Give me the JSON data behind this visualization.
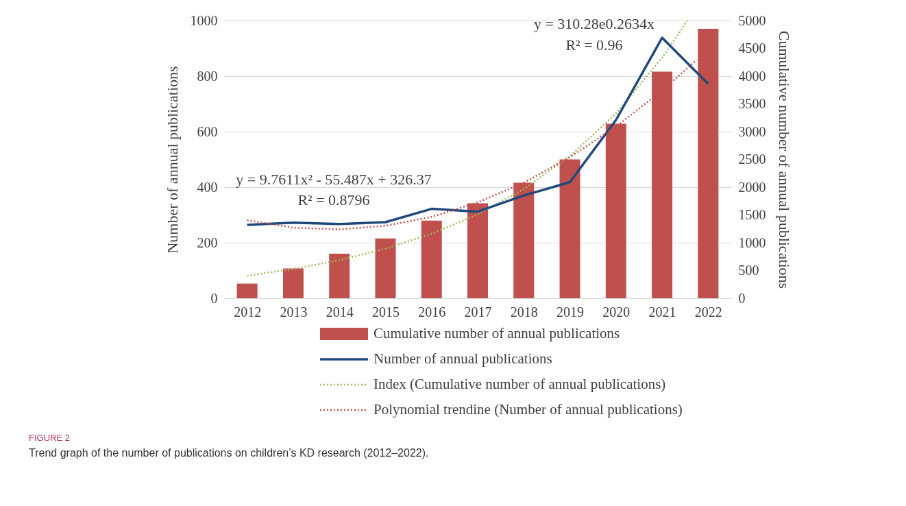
{
  "chart_data": {
    "type": "bar",
    "x": [
      2012,
      2013,
      2014,
      2015,
      2016,
      2017,
      2018,
      2019,
      2020,
      2021,
      2022
    ],
    "xlim": [
      2011.5,
      2022.5
    ],
    "xticks": [
      2012,
      2013,
      2014,
      2015,
      2016,
      2017,
      2018,
      2019,
      2020,
      2021,
      2022
    ],
    "ylabel": "Number of annual publications",
    "y2label": "Cumulative number of annual publications",
    "ylim": [
      0,
      1000
    ],
    "yticks": [
      0,
      200,
      400,
      600,
      800,
      1000
    ],
    "y2lim": [
      0,
      5000
    ],
    "y2ticks": [
      0,
      500,
      1000,
      1500,
      2000,
      2500,
      3000,
      3500,
      4000,
      4500,
      5000
    ],
    "grid": "y",
    "legend": "bottom",
    "marker": "none",
    "series": [
      {
        "name": "Cumulative number of annual publications",
        "axis": "y2",
        "color": "#c0504d",
        "values": [
          264,
          536,
          803,
          1077,
          1399,
          1711,
          2081,
          2499,
          3141,
          4079,
          4851
        ]
      },
      {
        "name": "Number of annual publications",
        "type": "line",
        "color": "#1f497d",
        "line_style": "solid",
        "values": [
          264,
          272,
          267,
          274,
          322,
          312,
          370,
          418,
          642,
          938,
          772
        ]
      },
      {
        "name": "Index (Cumulative number of annual publications)",
        "type": "line",
        "axis": "y2",
        "color": "#9bbb59",
        "line_style": "dotted",
        "x": [
          2012,
          2013,
          2014,
          2015,
          2016,
          2017,
          2018,
          2019,
          2020,
          2021,
          2021.55
        ],
        "values": [
          405,
          527,
          685,
          892,
          1160,
          1510,
          1965,
          2557,
          3327,
          4330,
          5000
        ]
      },
      {
        "name": "Polynomial trendine (Number of annual publications)",
        "type": "line",
        "color": "#c0504d",
        "line_style": "dotted",
        "x": [
          2012,
          2013,
          2014,
          2015,
          2016,
          2017,
          2018,
          2019,
          2020,
          2021,
          2021.75
        ],
        "values": [
          281,
          254,
          248,
          261,
          293,
          345,
          416,
          508,
          618,
          748,
          858
        ]
      }
    ],
    "annotations": [
      "y = 9.7611x² - 55.487x + 326.37",
      "R² = 0.8796",
      "y = 310.28e0.2634x",
      "R² = 0.96",
      "FIGURE 2",
      "Trend graph of the number of publications on children’s KD research (2012–2022)."
    ]
  }
}
